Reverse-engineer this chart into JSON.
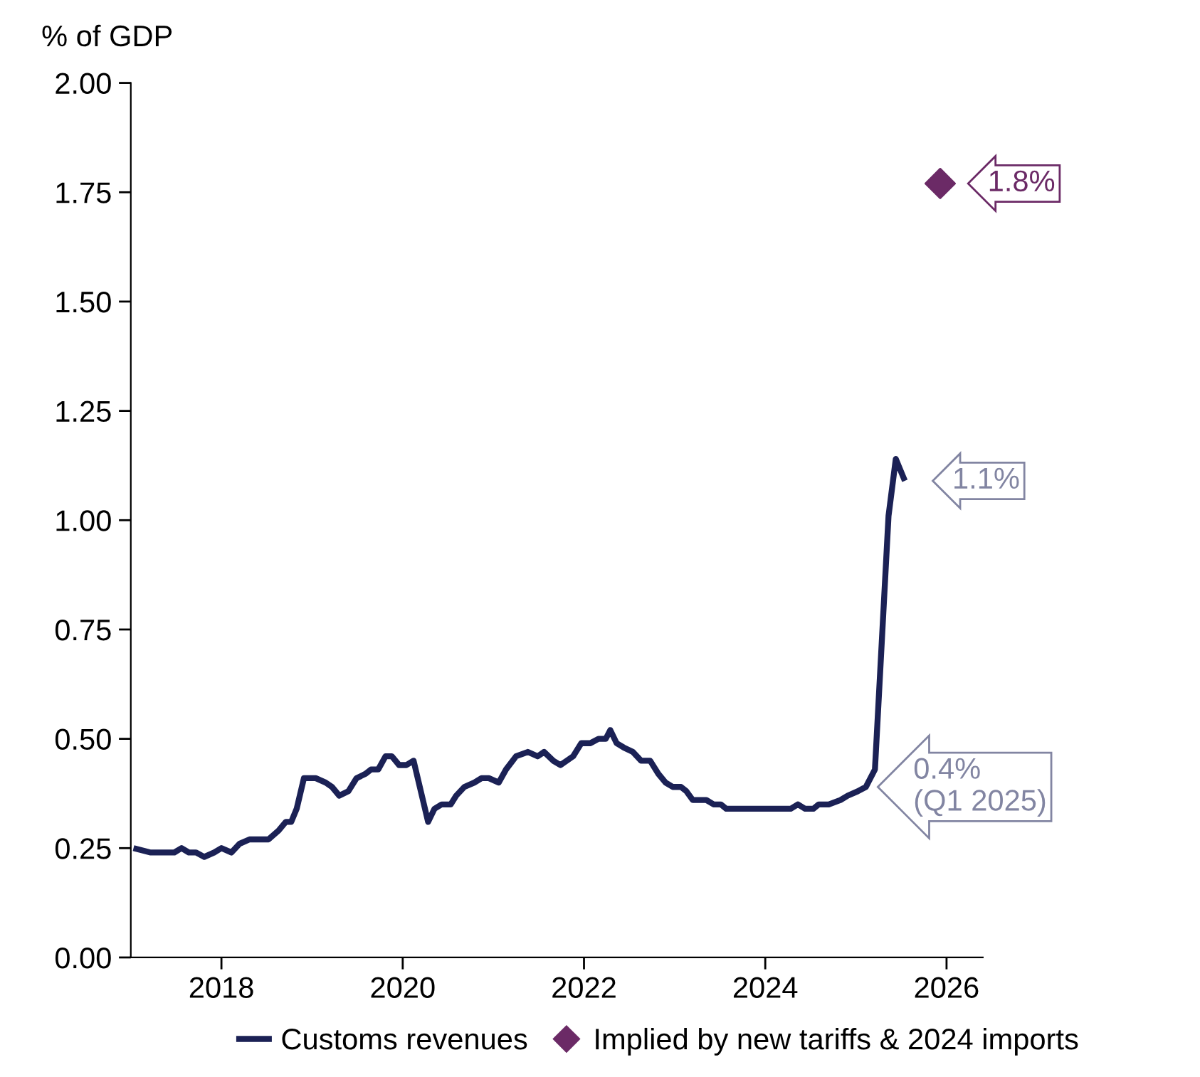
{
  "chart_data": {
    "type": "line",
    "ylabel": "% of GDP",
    "xlim": [
      2017,
      2026.4
    ],
    "xticks": [
      2018,
      2020,
      2022,
      2024,
      2026
    ],
    "ylim": [
      0,
      2
    ],
    "yticks": [
      {
        "value": 0,
        "label": "0.00"
      },
      {
        "value": 0.25,
        "label": "0.25"
      },
      {
        "value": 0.5,
        "label": "0.50"
      },
      {
        "value": 0.75,
        "label": "0.75"
      },
      {
        "value": 1,
        "label": "1.00"
      },
      {
        "value": 1.25,
        "label": "1.25"
      },
      {
        "value": 1.5,
        "label": "1.50"
      },
      {
        "value": 1.75,
        "label": "1.75"
      },
      {
        "value": 2,
        "label": "2.00"
      }
    ],
    "grid": false,
    "legend": "bottom",
    "series": [
      {
        "name": "Customs revenues",
        "type": "line",
        "color": "#1b2155",
        "marker": "none",
        "line_style": "solid",
        "x": [
          2017.03,
          2017.22,
          2017.32,
          2017.48,
          2017.56,
          2017.64,
          2017.72,
          2017.81,
          2017.92,
          2018.0,
          2018.11,
          2018.2,
          2018.31,
          2018.42,
          2018.52,
          2018.63,
          2018.71,
          2018.77,
          2018.83,
          2018.91,
          2019.04,
          2019.15,
          2019.22,
          2019.3,
          2019.4,
          2019.49,
          2019.59,
          2019.65,
          2019.73,
          2019.81,
          2019.88,
          2019.96,
          2020.04,
          2020.12,
          2020.28,
          2020.35,
          2020.43,
          2020.53,
          2020.59,
          2020.68,
          2020.79,
          2020.87,
          2020.95,
          2021.06,
          2021.14,
          2021.25,
          2021.38,
          2021.49,
          2021.56,
          2021.66,
          2021.74,
          2021.81,
          2021.88,
          2021.97,
          2022.07,
          2022.16,
          2022.24,
          2022.29,
          2022.36,
          2022.44,
          2022.54,
          2022.63,
          2022.73,
          2022.82,
          2022.9,
          2022.98,
          2023.07,
          2023.13,
          2023.2,
          2023.29,
          2023.35,
          2023.43,
          2023.51,
          2023.57,
          2023.67,
          2023.76,
          2023.84,
          2023.95,
          2024.04,
          2024.12,
          2024.23,
          2024.28,
          2024.36,
          2024.44,
          2024.53,
          2024.59,
          2024.7,
          2024.83,
          2024.91,
          2025.02,
          2025.11,
          2025.21,
          2025.36,
          2025.44,
          2025.54
        ],
        "values": [
          0.25,
          0.24,
          0.24,
          0.24,
          0.25,
          0.24,
          0.24,
          0.23,
          0.24,
          0.25,
          0.24,
          0.26,
          0.27,
          0.27,
          0.27,
          0.29,
          0.31,
          0.31,
          0.34,
          0.41,
          0.41,
          0.4,
          0.39,
          0.37,
          0.38,
          0.41,
          0.42,
          0.43,
          0.43,
          0.46,
          0.46,
          0.44,
          0.44,
          0.45,
          0.31,
          0.34,
          0.35,
          0.35,
          0.37,
          0.39,
          0.4,
          0.41,
          0.41,
          0.4,
          0.43,
          0.46,
          0.47,
          0.46,
          0.47,
          0.45,
          0.44,
          0.45,
          0.46,
          0.49,
          0.49,
          0.5,
          0.5,
          0.52,
          0.49,
          0.48,
          0.47,
          0.45,
          0.45,
          0.42,
          0.4,
          0.39,
          0.39,
          0.38,
          0.36,
          0.36,
          0.36,
          0.35,
          0.35,
          0.34,
          0.34,
          0.34,
          0.34,
          0.34,
          0.34,
          0.34,
          0.34,
          0.34,
          0.35,
          0.34,
          0.34,
          0.35,
          0.35,
          0.36,
          0.37,
          0.38,
          0.39,
          0.43,
          1.01,
          1.14,
          1.09
        ],
        "value_labels": [
          null,
          null,
          null,
          null,
          null,
          null,
          null,
          null,
          null,
          null,
          null,
          null,
          null,
          null,
          null,
          null,
          null,
          null,
          null,
          null,
          null,
          null,
          null,
          null,
          null,
          null,
          null,
          null,
          null,
          null,
          null,
          null,
          null,
          null,
          null,
          null,
          null,
          null,
          null,
          null,
          null,
          null,
          null,
          null,
          null,
          null,
          null,
          null,
          null,
          null,
          null,
          null,
          null,
          null,
          null,
          null,
          null,
          null,
          null,
          null,
          null,
          null,
          null,
          null,
          null,
          null,
          null,
          null,
          null,
          null,
          null,
          null,
          null,
          null,
          null,
          null,
          null,
          null,
          null,
          null,
          null,
          null,
          null,
          null,
          null,
          null,
          null,
          null,
          null,
          null,
          "0.4%\n(Q1 2025)",
          null,
          null,
          null,
          "1.1%"
        ]
      },
      {
        "name": "Implied by new tariffs & 2024 imports",
        "type": "scatter",
        "color": "#6b2a66",
        "marker": "diamond",
        "x": [
          2025.93
        ],
        "values": [
          1.77
        ],
        "value_labels": [
          "1.8%"
        ]
      }
    ]
  }
}
